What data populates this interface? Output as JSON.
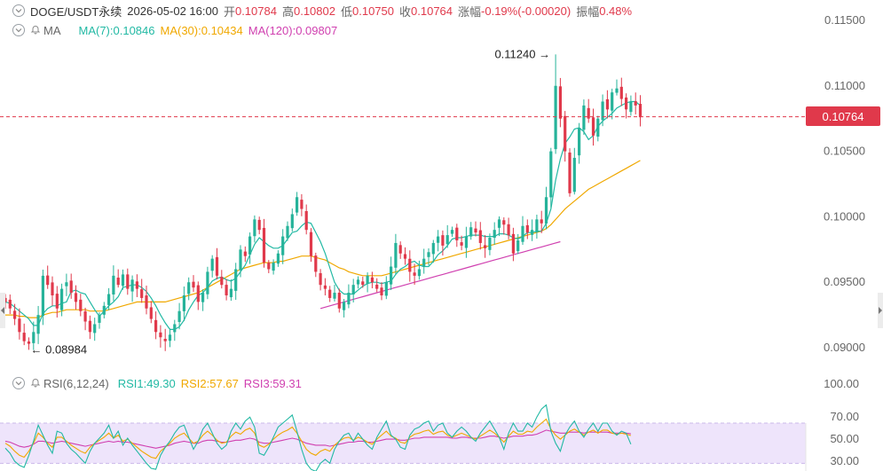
{
  "header": {
    "symbol": "DOGE/USDT永续",
    "datetime": "2026-05-02 16:00",
    "open_label": "开",
    "open": "0.10784",
    "high_label": "高",
    "high": "0.10802",
    "low_label": "低",
    "low": "0.10750",
    "close_label": "收",
    "close": "0.10764",
    "change_label": "涨幅",
    "change": "-0.19%(-0.00020)",
    "amplitude_label": "振幅",
    "amplitude": "0.48%"
  },
  "ma_legend": {
    "name": "MA",
    "ma7": "MA(7):0.10846",
    "ma30": "MA(30):0.10434",
    "ma120": "MA(120):0.09807"
  },
  "rsi_legend": {
    "name": "RSI(6,12,24)",
    "rsi1": "RSI1:49.30",
    "rsi2": "RSI2:57.67",
    "rsi3": "RSI3:59.31"
  },
  "price_axis": [
    "0.11500",
    "0.11000",
    "0.10500",
    "0.10000",
    "0.09500",
    "0.09000"
  ],
  "rsi_axis": [
    "100.00",
    "70.00",
    "50.00",
    "30.00"
  ],
  "current_price_tag": "0.10764",
  "high_marker": "0.11240",
  "low_marker": "0.08984",
  "colors": {
    "up": "#26b39a",
    "down": "#e0394b",
    "ma7": "#22b9a4",
    "ma30": "#f0a800",
    "ma120": "#d040b0",
    "rsi_band": "#eee4fb",
    "current_line": "#e0394b"
  },
  "chart_data": {
    "type": "candlestick",
    "interval": "4h",
    "price_range": [
      0.089,
      0.1155
    ],
    "rsi_range": [
      30,
      100
    ],
    "rsi_band": [
      30,
      70
    ],
    "high": 0.1124,
    "low": 0.08984,
    "last_close": 0.10764,
    "ma_last": {
      "ma7": 0.10846,
      "ma30": 0.10434,
      "ma120": 0.09807
    },
    "rsi_last": {
      "rsi1": 49.3,
      "rsi2": 57.67,
      "rsi3": 59.31
    },
    "closes": [
      0.0935,
      0.093,
      0.0922,
      0.0912,
      0.0905,
      0.0903,
      0.0912,
      0.0925,
      0.0955,
      0.0948,
      0.094,
      0.093,
      0.0945,
      0.095,
      0.0942,
      0.0935,
      0.0928,
      0.092,
      0.0912,
      0.0918,
      0.0925,
      0.0932,
      0.0941,
      0.0955,
      0.0948,
      0.0956,
      0.0945,
      0.0952,
      0.0945,
      0.0938,
      0.093,
      0.0922,
      0.0912,
      0.0908,
      0.0905,
      0.091,
      0.0918,
      0.0928,
      0.094,
      0.095,
      0.0946,
      0.0935,
      0.0942,
      0.0958,
      0.0968,
      0.0955,
      0.0948,
      0.094,
      0.0945,
      0.096,
      0.0975,
      0.097,
      0.0985,
      0.0998,
      0.099,
      0.0965,
      0.096,
      0.0965,
      0.0972,
      0.0985,
      0.0993,
      0.1002,
      0.1015,
      0.1006,
      0.099,
      0.097,
      0.0958,
      0.0948,
      0.0945,
      0.0938,
      0.0942,
      0.093,
      0.0935,
      0.0942,
      0.0948,
      0.0952,
      0.0948,
      0.0955,
      0.095,
      0.0945,
      0.094,
      0.095,
      0.0962,
      0.098,
      0.0972,
      0.0968,
      0.0958,
      0.0955,
      0.096,
      0.0968,
      0.0973,
      0.098,
      0.0985,
      0.0978,
      0.0986,
      0.099,
      0.0982,
      0.0978,
      0.0985,
      0.0992,
      0.0988,
      0.098,
      0.0976,
      0.0984,
      0.099,
      0.0998,
      0.0994,
      0.0986,
      0.0972,
      0.0982,
      0.0993,
      0.0988,
      0.099,
      0.0998,
      0.0995,
      0.1015,
      0.105,
      0.11,
      0.1075,
      0.105,
      0.1018,
      0.1045,
      0.1068,
      0.1085,
      0.1075,
      0.1062,
      0.1075,
      0.1088,
      0.1082,
      0.1095,
      0.1098,
      0.109,
      0.1082,
      0.1088,
      0.1085,
      0.1076
    ],
    "ma7": [
      0.0935,
      0.0934,
      0.0931,
      0.0928,
      0.0925,
      0.0922,
      0.0917,
      0.0917,
      0.0926,
      0.093,
      0.0932,
      0.0932,
      0.0934,
      0.0935,
      0.0943,
      0.0944,
      0.0942,
      0.0941,
      0.0935,
      0.0929,
      0.0924,
      0.0928,
      0.0932,
      0.0935,
      0.0939,
      0.0946,
      0.0947,
      0.0948,
      0.0948,
      0.0946,
      0.0943,
      0.0938,
      0.0932,
      0.0925,
      0.0919,
      0.0914,
      0.0914,
      0.0916,
      0.0921,
      0.0929,
      0.0935,
      0.094,
      0.0942,
      0.0946,
      0.0951,
      0.0953,
      0.0954,
      0.0952,
      0.0951,
      0.0953,
      0.0958,
      0.0963,
      0.0971,
      0.0979,
      0.0984,
      0.0981,
      0.0978,
      0.0976,
      0.0976,
      0.0978,
      0.0983,
      0.0988,
      0.0989,
      0.0993,
      0.0996,
      0.0995,
      0.0988,
      0.0981,
      0.0972,
      0.0961,
      0.095,
      0.0944,
      0.0941,
      0.0941,
      0.0941,
      0.0944,
      0.0947,
      0.0949,
      0.095,
      0.095,
      0.0949,
      0.095,
      0.0951,
      0.0956,
      0.096,
      0.0962,
      0.0965,
      0.0966,
      0.0963,
      0.0962,
      0.0962,
      0.0966,
      0.0971,
      0.0974,
      0.0978,
      0.0983,
      0.0984,
      0.0984,
      0.0985,
      0.0986,
      0.0986,
      0.0986,
      0.0985,
      0.0985,
      0.0985,
      0.0987,
      0.0987,
      0.0986,
      0.0984,
      0.0983,
      0.0985,
      0.0988,
      0.0988,
      0.0989,
      0.0989,
      0.0995,
      0.1006,
      0.1028,
      0.1044,
      0.1056,
      0.1061,
      0.1067,
      0.1068,
      0.1065,
      0.1059,
      0.1062,
      0.1069,
      0.1073,
      0.1076,
      0.1079,
      0.1083,
      0.1085,
      0.1087,
      0.1088,
      0.1088,
      0.1085
    ],
    "ma30": [
      0.0925,
      0.0925,
      0.0925,
      0.0924,
      0.0924,
      0.0923,
      0.0923,
      0.0923,
      0.0925,
      0.0926,
      0.0927,
      0.0927,
      0.0928,
      0.0929,
      0.0929,
      0.0929,
      0.0929,
      0.0929,
      0.0928,
      0.0928,
      0.0928,
      0.0928,
      0.0929,
      0.093,
      0.0931,
      0.0932,
      0.0933,
      0.0934,
      0.0935,
      0.0935,
      0.0935,
      0.0935,
      0.0935,
      0.0935,
      0.0935,
      0.0936,
      0.0937,
      0.0938,
      0.0939,
      0.094,
      0.0941,
      0.0942,
      0.0944,
      0.0946,
      0.0948,
      0.095,
      0.0952,
      0.0954,
      0.0956,
      0.0958,
      0.096,
      0.0961,
      0.0962,
      0.0963,
      0.0964,
      0.0965,
      0.0965,
      0.0965,
      0.0966,
      0.0966,
      0.0967,
      0.0968,
      0.0969,
      0.097,
      0.097,
      0.097,
      0.0969,
      0.0968,
      0.0967,
      0.0965,
      0.0963,
      0.0961,
      0.096,
      0.0958,
      0.0957,
      0.0956,
      0.0955,
      0.0955,
      0.0955,
      0.0955,
      0.0955,
      0.0956,
      0.0957,
      0.0958,
      0.0959,
      0.096,
      0.0961,
      0.0962,
      0.0963,
      0.0964,
      0.0965,
      0.0966,
      0.0967,
      0.0968,
      0.0969,
      0.097,
      0.0971,
      0.0972,
      0.0973,
      0.0974,
      0.0975,
      0.0976,
      0.0977,
      0.0978,
      0.0979,
      0.098,
      0.0981,
      0.0982,
      0.0983,
      0.0984,
      0.0985,
      0.0986,
      0.0987,
      0.0988,
      0.0989,
      0.0991,
      0.0994,
      0.0998,
      0.1002,
      0.1006,
      0.1009,
      0.1012,
      0.1015,
      0.1018,
      0.1021,
      0.1023,
      0.1025,
      0.1027,
      0.1029,
      0.1031,
      0.1033,
      0.1035,
      0.1037,
      0.1039,
      0.1041,
      0.1043
    ],
    "ma120": [
      0.093,
      0.0931,
      0.0932,
      0.0933,
      0.0934,
      0.0935,
      0.0936,
      0.0937,
      0.0938,
      0.0939,
      0.094,
      0.0941,
      0.0942,
      0.0943,
      0.0944,
      0.0945,
      0.0946,
      0.0947,
      0.0948,
      0.0949,
      0.095,
      0.0951,
      0.0952,
      0.0953,
      0.0954,
      0.0955,
      0.0956,
      0.0957,
      0.0958,
      0.0959,
      0.096,
      0.0961,
      0.0962,
      0.0963,
      0.0964,
      0.0965,
      0.0966,
      0.0967,
      0.0968,
      0.0969,
      0.097,
      0.0971,
      0.0972,
      0.0973,
      0.0974,
      0.0975,
      0.0976,
      0.0977,
      0.0978,
      0.0979,
      0.098,
      0.0981
    ],
    "rsi1": [
      45,
      40,
      32,
      28,
      26,
      38,
      52,
      68,
      58,
      48,
      40,
      62,
      60,
      50,
      44,
      40,
      35,
      30,
      42,
      50,
      55,
      60,
      68,
      55,
      62,
      48,
      55,
      48,
      42,
      36,
      30,
      25,
      24,
      38,
      46,
      52,
      60,
      66,
      68,
      56,
      44,
      52,
      64,
      70,
      60,
      50,
      44,
      48,
      62,
      70,
      64,
      72,
      76,
      66,
      40,
      38,
      46,
      56,
      66,
      70,
      74,
      78,
      62,
      44,
      30,
      24,
      22,
      30,
      34,
      30,
      44,
      52,
      58,
      60,
      52,
      60,
      54,
      48,
      44,
      56,
      64,
      72,
      58,
      54,
      46,
      44,
      58,
      64,
      66,
      70,
      72,
      62,
      68,
      70,
      60,
      56,
      62,
      66,
      62,
      56,
      52,
      60,
      66,
      72,
      64,
      56,
      44,
      60,
      70,
      62,
      62,
      70,
      66,
      76,
      84,
      88,
      62,
      50,
      42,
      58,
      66,
      72,
      62,
      56,
      64,
      70,
      62,
      70,
      70,
      62,
      58,
      62,
      60,
      49
    ],
    "rsi2": [
      50,
      47,
      42,
      38,
      36,
      42,
      50,
      60,
      56,
      50,
      46,
      56,
      56,
      52,
      48,
      45,
      42,
      40,
      46,
      50,
      53,
      56,
      60,
      55,
      58,
      52,
      54,
      50,
      46,
      42,
      39,
      36,
      35,
      42,
      46,
      50,
      55,
      58,
      60,
      55,
      50,
      52,
      58,
      62,
      58,
      53,
      50,
      51,
      57,
      61,
      59,
      63,
      65,
      60,
      48,
      46,
      49,
      54,
      58,
      61,
      63,
      66,
      60,
      52,
      44,
      40,
      38,
      42,
      44,
      42,
      48,
      52,
      55,
      56,
      53,
      56,
      54,
      51,
      49,
      54,
      58,
      62,
      57,
      55,
      51,
      50,
      56,
      59,
      60,
      62,
      63,
      59,
      61,
      62,
      58,
      56,
      58,
      60,
      58,
      56,
      54,
      57,
      60,
      63,
      60,
      56,
      51,
      57,
      62,
      59,
      59,
      62,
      61,
      66,
      70,
      74,
      64,
      58,
      54,
      58,
      62,
      64,
      61,
      58,
      61,
      63,
      60,
      63,
      63,
      60,
      59,
      60,
      59,
      57.67
    ],
    "rsi3": [
      52,
      51,
      49,
      47,
      46,
      47,
      49,
      52,
      52,
      51,
      50,
      51,
      52,
      51,
      50,
      49,
      48,
      47,
      48,
      49,
      50,
      51,
      52,
      51,
      52,
      51,
      51,
      50,
      49,
      48,
      47,
      46,
      45,
      46,
      47,
      48,
      50,
      51,
      52,
      51,
      50,
      50,
      52,
      53,
      53,
      52,
      51,
      51,
      52,
      53,
      53,
      54,
      55,
      54,
      51,
      50,
      50,
      51,
      52,
      53,
      54,
      55,
      54,
      52,
      50,
      49,
      48,
      48,
      48,
      47,
      48,
      49,
      50,
      51,
      51,
      52,
      52,
      51,
      51,
      52,
      53,
      54,
      54,
      54,
      53,
      53,
      54,
      55,
      55,
      56,
      56,
      56,
      56,
      56,
      56,
      55,
      55,
      56,
      56,
      55,
      55,
      55,
      56,
      57,
      57,
      56,
      55,
      56,
      57,
      57,
      57,
      58,
      58,
      59,
      61,
      63,
      62,
      61,
      60,
      60,
      61,
      61,
      61,
      60,
      61,
      61,
      61,
      61,
      61,
      60,
      60,
      60,
      60,
      59.31
    ]
  }
}
